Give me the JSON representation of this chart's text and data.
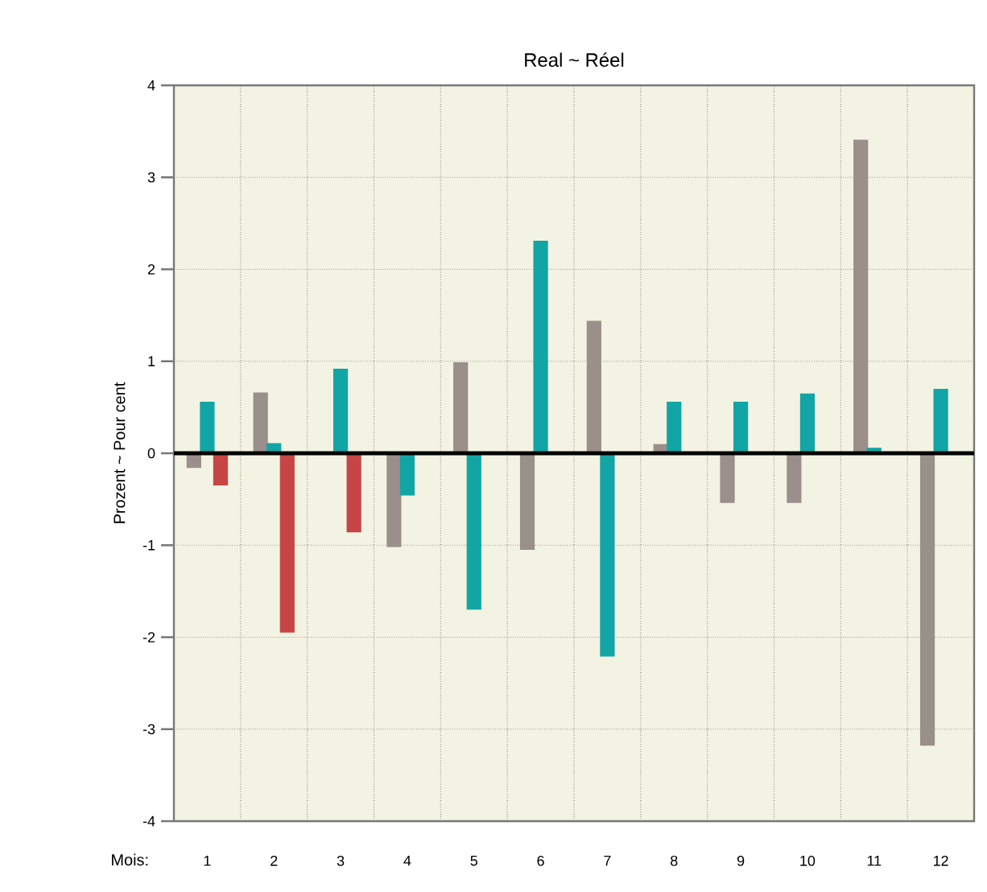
{
  "chart_data": {
    "type": "bar",
    "title": "Real ~ Réel",
    "xlabel": "Mois:",
    "ylabel": "Prozent ~ Pour cent",
    "categories": [
      "1",
      "2",
      "3",
      "4",
      "5",
      "6",
      "7",
      "8",
      "9",
      "10",
      "11",
      "12"
    ],
    "series": [
      {
        "color": "#9a8f8a",
        "values": [
          -0.16,
          0.66,
          null,
          -1.02,
          0.99,
          -1.05,
          1.44,
          0.1,
          -0.54,
          -0.54,
          3.41,
          -3.18
        ]
      },
      {
        "color": "#12a5a5",
        "values": [
          0.56,
          0.11,
          0.92,
          -0.46,
          -1.7,
          2.31,
          -2.21,
          0.56,
          0.56,
          0.65,
          0.06,
          0.7
        ]
      },
      {
        "color": "#c74545",
        "values": [
          -0.35,
          -1.95,
          -0.86,
          null,
          null,
          null,
          null,
          null,
          null,
          null,
          null,
          null
        ]
      }
    ],
    "ylim": [
      -4,
      4
    ],
    "yticks": [
      -4,
      -3,
      -2,
      -1,
      0,
      1,
      2,
      3,
      4
    ],
    "grid": true,
    "ref_lines": [
      {
        "axis": "y",
        "value": 0,
        "color": "#000000"
      }
    ]
  }
}
